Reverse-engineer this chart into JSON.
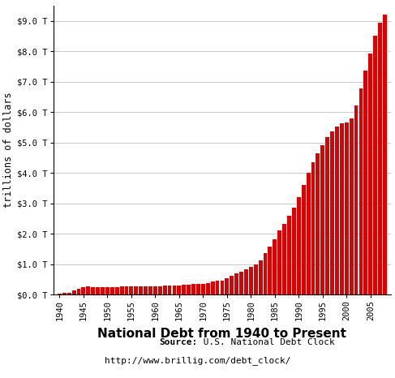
{
  "title": "National Debt from 1940 to Present",
  "ylabel": "trillions of dollars",
  "source_bold": "Source:",
  "source_text": " U.S. National Debt Clock",
  "source_url": "http://www.brillig.com/debt_clock/",
  "bar_color": "#dd0000",
  "background_color": "#ffffff",
  "grid_color": "#c8c8c8",
  "ylim": [
    0,
    9.5
  ],
  "ytick_labels": [
    "$0.0 T",
    "$1.0 T",
    "$2.0 T",
    "$3.0 T",
    "$4.0 T",
    "$5.0 T",
    "$6.0 T",
    "$7.0 T",
    "$8.0 T",
    "$9.0 T"
  ],
  "ytick_values": [
    0,
    1.0,
    2.0,
    3.0,
    4.0,
    5.0,
    6.0,
    7.0,
    8.0,
    9.0
  ],
  "years": [
    1940,
    1941,
    1942,
    1943,
    1944,
    1945,
    1946,
    1947,
    1948,
    1949,
    1950,
    1951,
    1952,
    1953,
    1954,
    1955,
    1956,
    1957,
    1958,
    1959,
    1960,
    1961,
    1962,
    1963,
    1964,
    1965,
    1966,
    1967,
    1968,
    1969,
    1970,
    1971,
    1972,
    1973,
    1974,
    1975,
    1976,
    1977,
    1978,
    1979,
    1980,
    1981,
    1982,
    1983,
    1984,
    1985,
    1986,
    1987,
    1988,
    1989,
    1990,
    1991,
    1992,
    1993,
    1994,
    1995,
    1996,
    1997,
    1998,
    1999,
    2000,
    2001,
    2002,
    2003,
    2004,
    2005,
    2006,
    2007,
    2008
  ],
  "debt": [
    0.051,
    0.057,
    0.079,
    0.137,
    0.201,
    0.259,
    0.27,
    0.257,
    0.252,
    0.252,
    0.257,
    0.255,
    0.259,
    0.266,
    0.271,
    0.274,
    0.272,
    0.27,
    0.276,
    0.284,
    0.286,
    0.289,
    0.298,
    0.306,
    0.311,
    0.317,
    0.32,
    0.326,
    0.347,
    0.353,
    0.371,
    0.398,
    0.427,
    0.458,
    0.475,
    0.533,
    0.62,
    0.699,
    0.772,
    0.827,
    0.908,
    0.994,
    1.142,
    1.377,
    1.572,
    1.823,
    2.125,
    2.34,
    2.601,
    2.868,
    3.206,
    3.599,
    4.002,
    4.351,
    4.643,
    4.921,
    5.182,
    5.369,
    5.526,
    5.647,
    5.674,
    5.807,
    6.228,
    6.783,
    7.379,
    7.933,
    8.507,
    8.95,
    9.2
  ],
  "xtick_positions": [
    1940,
    1945,
    1950,
    1955,
    1960,
    1965,
    1970,
    1975,
    1980,
    1985,
    1990,
    1995,
    2000,
    2005
  ],
  "xtick_labels": [
    "1940",
    "1945",
    "1950",
    "1955",
    "1960",
    "1965",
    "1970",
    "1975",
    "1980",
    "1985",
    "1990",
    "1995",
    "2000",
    "2005"
  ]
}
